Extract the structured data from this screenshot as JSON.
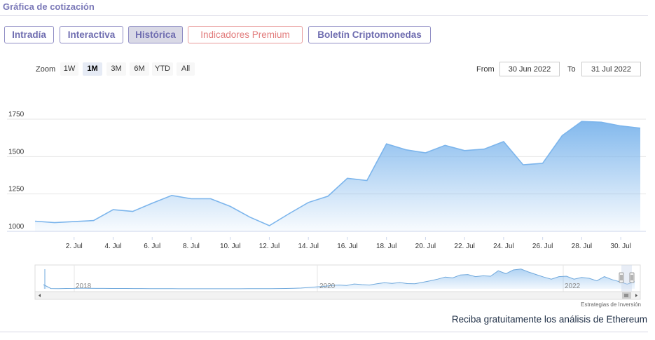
{
  "section_title": "Gráfica de cotización",
  "tabs": [
    {
      "label": "Intradía"
    },
    {
      "label": "Interactiva"
    },
    {
      "label": "Histórica"
    },
    {
      "label": "Indicadores Premium"
    },
    {
      "label": "Boletín Criptomonedas"
    }
  ],
  "zoom": {
    "label": "Zoom",
    "buttons": [
      "1W",
      "1M",
      "3M",
      "6M",
      "YTD",
      "All"
    ],
    "selected": "1M"
  },
  "range": {
    "from_label": "From",
    "from_value": "30 Jun 2022",
    "to_label": "To",
    "to_value": "31 Jul 2022"
  },
  "colors": {
    "line": "#7cb5ec",
    "accent": "#7b79b8",
    "premium": "#e27c7c"
  },
  "chart_data": {
    "type": "area",
    "x": [
      "Jun 30",
      "Jul 1",
      "Jul 2",
      "Jul 3",
      "Jul 4",
      "Jul 5",
      "Jul 6",
      "Jul 7",
      "Jul 8",
      "Jul 9",
      "Jul 10",
      "Jul 11",
      "Jul 12",
      "Jul 13",
      "Jul 14",
      "Jul 15",
      "Jul 16",
      "Jul 17",
      "Jul 18",
      "Jul 19",
      "Jul 20",
      "Jul 21",
      "Jul 22",
      "Jul 23",
      "Jul 24",
      "Jul 25",
      "Jul 26",
      "Jul 27",
      "Jul 28",
      "Jul 29",
      "Jul 30",
      "Jul 31"
    ],
    "values": [
      1068,
      1058,
      1065,
      1072,
      1145,
      1133,
      1188,
      1240,
      1218,
      1218,
      1167,
      1095,
      1038,
      1117,
      1193,
      1235,
      1355,
      1340,
      1585,
      1545,
      1525,
      1575,
      1540,
      1550,
      1600,
      1445,
      1455,
      1640,
      1735,
      1730,
      1705,
      1690
    ],
    "x_ticks": [
      "2. Jul",
      "4. Jul",
      "6. Jul",
      "8. Jul",
      "10. Jul",
      "12. Jul",
      "14. Jul",
      "16. Jul",
      "18. Jul",
      "20. Jul",
      "22. Jul",
      "24. Jul",
      "26. Jul",
      "28. Jul",
      "30. Jul"
    ],
    "y_ticks": [
      "1000",
      "1250",
      "1500",
      "1750"
    ],
    "ylim": [
      1000,
      1750
    ],
    "grid": true
  },
  "navigator": {
    "labels": [
      "2018",
      "2020",
      "2022"
    ],
    "series": [
      1000,
      60,
      50,
      80,
      100,
      160,
      130,
      100,
      95,
      80,
      90,
      85,
      70,
      60,
      50,
      40,
      35,
      30,
      25,
      25,
      20,
      20,
      22,
      25,
      20,
      20,
      25,
      30,
      35,
      40,
      50,
      60,
      80,
      130,
      180,
      320,
      450,
      580,
      820,
      900,
      780,
      1150,
      1000,
      900,
      1200,
      1450,
      1300,
      1500,
      1250,
      1200,
      1550,
      1900,
      2300,
      2800,
      2600,
      3300,
      3400,
      2900,
      3100,
      3000,
      4300,
      3600,
      4500,
      4700,
      4000,
      3400,
      2800,
      2300,
      2900,
      3000,
      2300,
      2700,
      2500,
      1900,
      2900,
      2200,
      1700,
      1100,
      1700
    ]
  },
  "credit": "Estrategias de Inversión",
  "cta": "Reciba gratuitamente los análisis de Ethereum"
}
